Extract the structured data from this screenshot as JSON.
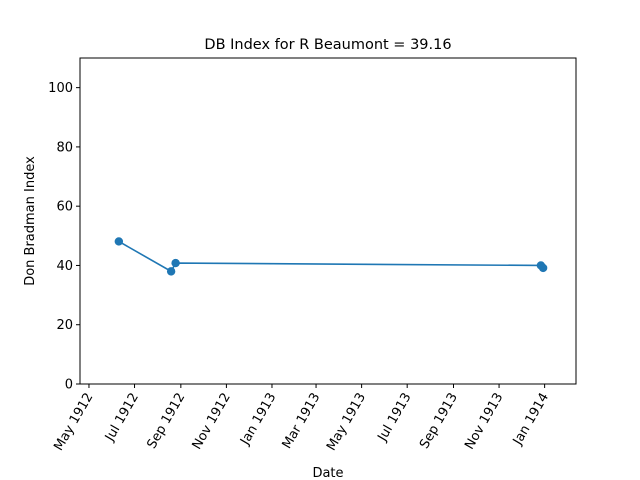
{
  "chart_data": {
    "type": "line",
    "title": "DB Index for R Beaumont = 39.16",
    "xlabel": "Date",
    "ylabel": "Don Bradman Index",
    "xlim": [
      "1912-04-19",
      "1914-02-12"
    ],
    "ylim": [
      0,
      110
    ],
    "x_ticks": [
      {
        "label": "May 1912",
        "date": "1912-05-01"
      },
      {
        "label": "Jul 1912",
        "date": "1912-07-01"
      },
      {
        "label": "Sep 1912",
        "date": "1912-09-01"
      },
      {
        "label": "Nov 1912",
        "date": "1912-11-01"
      },
      {
        "label": "Jan 1913",
        "date": "1913-01-01"
      },
      {
        "label": "Mar 1913",
        "date": "1913-03-01"
      },
      {
        "label": "May 1913",
        "date": "1913-05-01"
      },
      {
        "label": "Jul 1913",
        "date": "1913-07-01"
      },
      {
        "label": "Sep 1913",
        "date": "1913-09-01"
      },
      {
        "label": "Nov 1913",
        "date": "1913-11-01"
      },
      {
        "label": "Jan 1914",
        "date": "1914-01-01"
      }
    ],
    "y_ticks": [
      0,
      20,
      40,
      60,
      80,
      100
    ],
    "grid": false,
    "series": [
      {
        "color": "#1f77b4",
        "x": [
          "1912-06-10",
          "1912-08-19",
          "1912-08-25",
          "1913-12-27",
          "1913-12-30"
        ],
        "y": [
          48.1,
          38.0,
          40.8,
          40.0,
          39.16
        ]
      }
    ]
  }
}
